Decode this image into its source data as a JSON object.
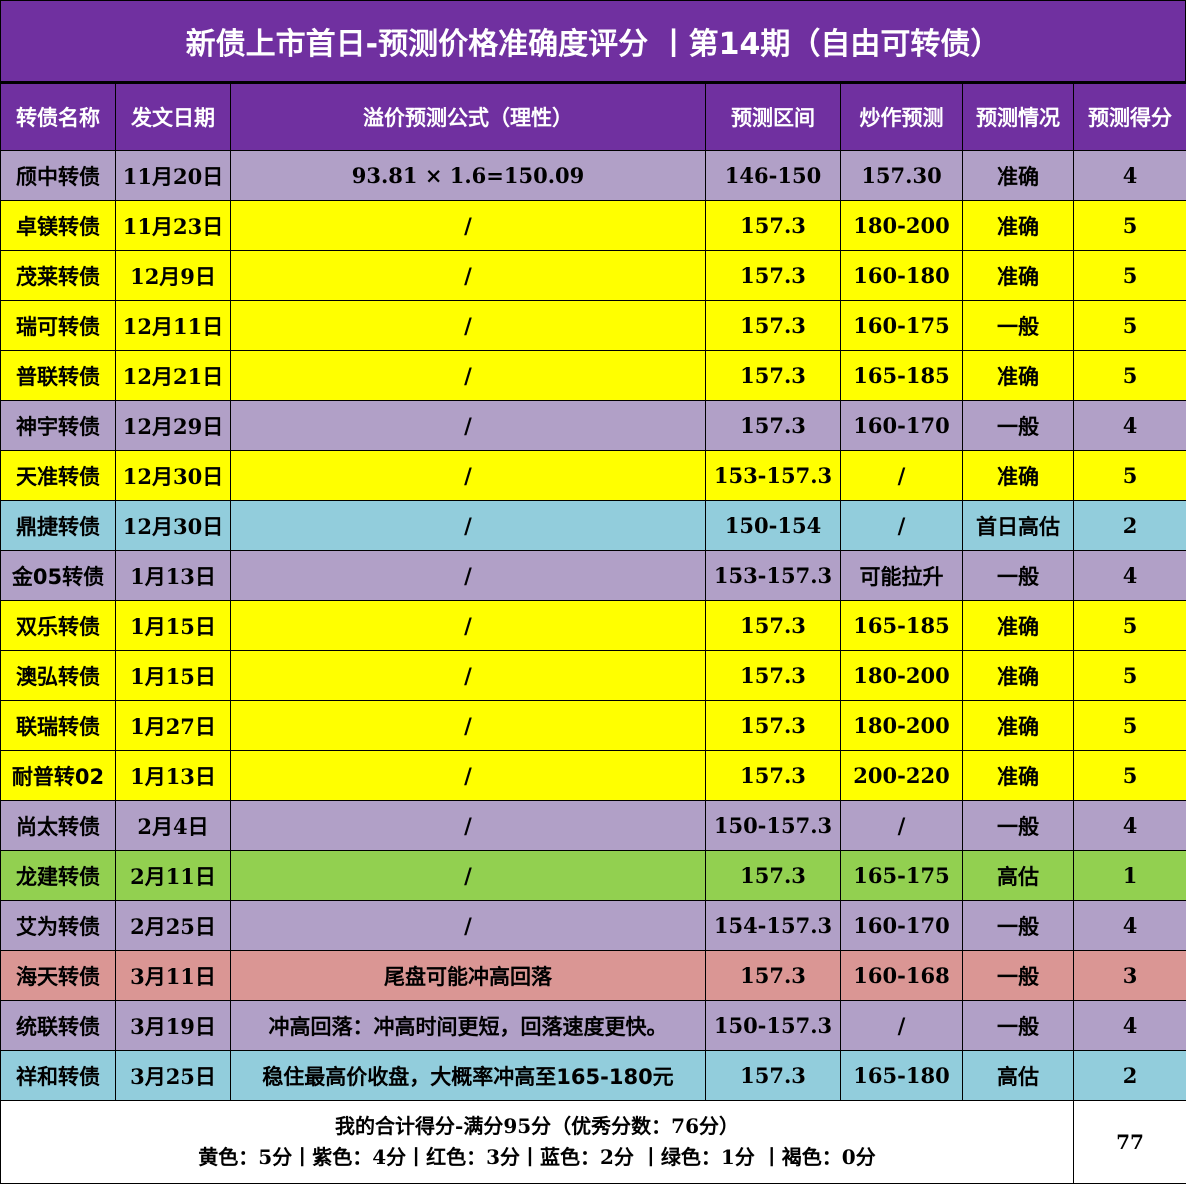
{
  "title": "新债上市首日-预测价格准确度评分 丨第14期（自由可转债）",
  "colors": {
    "header": "#7030a0",
    "purple": "#b1a0c7",
    "yellow": "#ffff00",
    "blue": "#92cddc",
    "green": "#92d050",
    "red": "#da9694"
  },
  "columns": [
    "转债名称",
    "发文日期",
    "溢价预测公式（理性）",
    "预测区间",
    "炒作预测",
    "预测情况",
    "预测得分"
  ],
  "rows": [
    {
      "color": "purple",
      "cells": [
        "颀中转债",
        "11月20日",
        "93.81 × 1.6=150.09",
        "146-150",
        "157.30",
        "准确",
        "4"
      ]
    },
    {
      "color": "yellow",
      "cells": [
        "卓镁转债",
        "11月23日",
        "/",
        "157.3",
        "180-200",
        "准确",
        "5"
      ]
    },
    {
      "color": "yellow",
      "cells": [
        "茂莱转债",
        "12月9日",
        "/",
        "157.3",
        "160-180",
        "准确",
        "5"
      ]
    },
    {
      "color": "yellow",
      "cells": [
        "瑞可转债",
        "12月11日",
        "/",
        "157.3",
        "160-175",
        "一般",
        "5"
      ]
    },
    {
      "color": "yellow",
      "cells": [
        "普联转债",
        "12月21日",
        "/",
        "157.3",
        "165-185",
        "准确",
        "5"
      ]
    },
    {
      "color": "purple",
      "cells": [
        "神宇转债",
        "12月29日",
        "/",
        "157.3",
        "160-170",
        "一般",
        "4"
      ]
    },
    {
      "color": "yellow",
      "cells": [
        "天准转债",
        "12月30日",
        "/",
        "153-157.3",
        "/",
        "准确",
        "5"
      ]
    },
    {
      "color": "blue",
      "cells": [
        "鼎捷转债",
        "12月30日",
        "/",
        "150-154",
        "/",
        "首日高估",
        "2"
      ]
    },
    {
      "color": "purple",
      "cells": [
        "金05转债",
        "1月13日",
        "/",
        "153-157.3",
        "可能拉升",
        "一般",
        "4"
      ]
    },
    {
      "color": "yellow",
      "cells": [
        "双乐转债",
        "1月15日",
        "/",
        "157.3",
        "165-185",
        "准确",
        "5"
      ]
    },
    {
      "color": "yellow",
      "cells": [
        "澳弘转债",
        "1月15日",
        "/",
        "157.3",
        "180-200",
        "准确",
        "5"
      ]
    },
    {
      "color": "yellow",
      "cells": [
        "联瑞转债",
        "1月27日",
        "/",
        "157.3",
        "180-200",
        "准确",
        "5"
      ]
    },
    {
      "color": "yellow",
      "cells": [
        "耐普转02",
        "1月13日",
        "/",
        "157.3",
        "200-220",
        "准确",
        "5"
      ]
    },
    {
      "color": "purple",
      "cells": [
        "尚太转债",
        "2月4日",
        "/",
        "150-157.3",
        "/",
        "一般",
        "4"
      ]
    },
    {
      "color": "green",
      "cells": [
        "龙建转债",
        "2月11日",
        "/",
        "157.3",
        "165-175",
        "高估",
        "1"
      ]
    },
    {
      "color": "purple",
      "cells": [
        "艾为转债",
        "2月25日",
        "/",
        "154-157.3",
        "160-170",
        "一般",
        "4"
      ]
    },
    {
      "color": "red",
      "cells": [
        "海天转债",
        "3月11日",
        "尾盘可能冲高回落",
        "157.3",
        "160-168",
        "一般",
        "3"
      ]
    },
    {
      "color": "purple",
      "cells": [
        "统联转债",
        "3月19日",
        "冲高回落：冲高时间更短，回落速度更快。",
        "150-157.3",
        "/",
        "一般",
        "4"
      ]
    },
    {
      "color": "blue",
      "cells": [
        "祥和转债",
        "3月25日",
        "稳住最高价收盘，大概率冲高至165-180元",
        "157.3",
        "165-180",
        "高估",
        "2"
      ]
    }
  ],
  "footer": {
    "line1": "我的合计得分-满分95分（优秀分数：76分）",
    "line2": "黄色：5分丨紫色：4分丨红色：3分丨蓝色：2分 丨绿色：1分  丨褐色：0分",
    "total": "77"
  }
}
